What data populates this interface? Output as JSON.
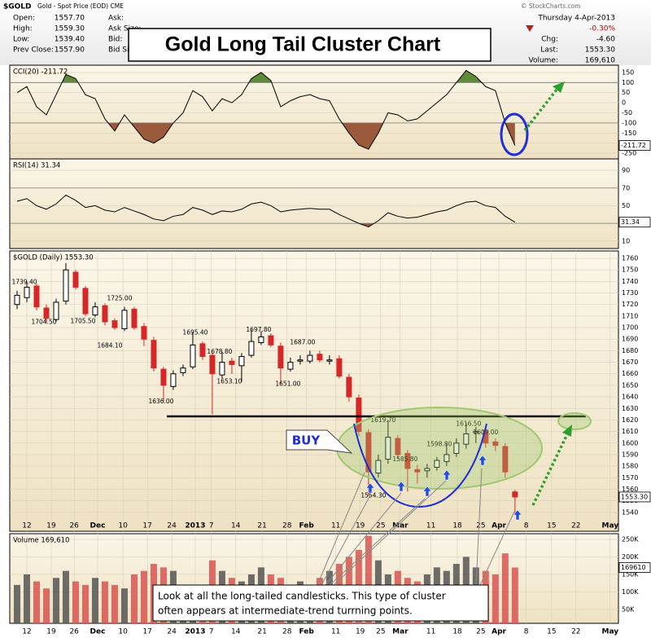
{
  "header": {
    "symbol": "$GOLD",
    "description": "Gold - Spot Price (EOD) CME",
    "fields": [
      [
        "Open:",
        "1557.70"
      ],
      [
        "High:",
        "1559.30"
      ],
      [
        "Low:",
        "1539.40"
      ],
      [
        "Prev Close:",
        "1557.90"
      ]
    ],
    "quote_fields": [
      "Ask:",
      "Ask Size:",
      "Bid:",
      "Bid Size:"
    ],
    "copyright": "© StockCharts.com",
    "date": "Thursday  4-Apr-2013",
    "change_pct": "-0.30%",
    "stats": [
      [
        "Chg:",
        "-4.60"
      ],
      [
        "Last:",
        "1553.30"
      ],
      [
        "Volume:",
        "169,610"
      ]
    ]
  },
  "annotations": {
    "title": "Gold Long Tail Cluster Chart",
    "buy": "BUY",
    "note": [
      "Look at all the long-tailed candlesticks.  This type of cluster",
      "often appears at intermediate-trend turrning points."
    ]
  },
  "chart_data": [
    {
      "type": "line",
      "label": "CCI(20) -211.72",
      "last_value_label": "-211.72",
      "color": "#000000",
      "upper_band": 100,
      "lower_band": -100,
      "upper_color": "#5f8a3a",
      "lower_color": "#9b5a3c",
      "xlim": [
        0,
        124.7
      ],
      "ylim": [
        -278,
        186
      ],
      "yticks": [
        150,
        100,
        50,
        0,
        -50,
        -100,
        -150,
        -200,
        -250
      ],
      "x": [
        1.5,
        3.5,
        5.5,
        7.5,
        9.5,
        11.5,
        13.5,
        15.5,
        17.5,
        19.5,
        21.5,
        23.5,
        25.5,
        27.5,
        29.5,
        31.5,
        33.5,
        35.5,
        37.5,
        39.5,
        41.5,
        43.5,
        45.5,
        47.5,
        49.5,
        51.5,
        53.5,
        55.5,
        57.5,
        59.5,
        61.5,
        63.5,
        65.5,
        67.5,
        69.5,
        71.5,
        73.5,
        75.5,
        77.5,
        79.5,
        81.5,
        83.5,
        85.5,
        87.5,
        89.5,
        91.5,
        93.5,
        95.5,
        97.5,
        99.5,
        101.5,
        103.5
      ],
      "values": [
        50,
        80,
        -20,
        -60,
        40,
        140,
        120,
        40,
        20,
        -80,
        -140,
        -60,
        -120,
        -180,
        -200,
        -170,
        -100,
        -50,
        60,
        30,
        -40,
        20,
        0,
        40,
        120,
        150,
        110,
        -20,
        10,
        30,
        40,
        20,
        10,
        -80,
        -150,
        -210,
        -230,
        -150,
        -50,
        -60,
        -90,
        -80,
        -40,
        0,
        40,
        100,
        160,
        130,
        80,
        60,
        -100,
        -211.72
      ]
    },
    {
      "type": "line",
      "label": "RSI(14) 31.34",
      "last_value_label": "31.34",
      "color": "#000000",
      "upper_band": 70,
      "lower_band": 30,
      "upper_color": "#5f8a3a",
      "lower_color": "#9b5a3c",
      "xlim": [
        0,
        124.7
      ],
      "ylim": [
        1.5,
        103
      ],
      "yticks": [
        90,
        70,
        50,
        30,
        10
      ],
      "x": [
        1.5,
        3.5,
        5.5,
        7.5,
        9.5,
        11.5,
        13.5,
        15.5,
        17.5,
        19.5,
        21.5,
        23.5,
        25.5,
        27.5,
        29.5,
        31.5,
        33.5,
        35.5,
        37.5,
        39.5,
        41.5,
        43.5,
        45.5,
        47.5,
        49.5,
        51.5,
        53.5,
        55.5,
        57.5,
        59.5,
        61.5,
        63.5,
        65.5,
        67.5,
        69.5,
        71.5,
        73.5,
        75.5,
        77.5,
        79.5,
        81.5,
        83.5,
        85.5,
        87.5,
        89.5,
        91.5,
        93.5,
        95.5,
        97.5,
        99.5,
        101.5,
        103.5
      ],
      "values": [
        55,
        58,
        50,
        46,
        52,
        62,
        56,
        48,
        50,
        45,
        43,
        48,
        44,
        40,
        35,
        33,
        38,
        40,
        48,
        45,
        40,
        44,
        43,
        46,
        52,
        54,
        50,
        43,
        45,
        46,
        47,
        46,
        46,
        40,
        35,
        30,
        26,
        33,
        42,
        38,
        36,
        37,
        40,
        43,
        45,
        50,
        54,
        55,
        50,
        48,
        38,
        31.34
      ]
    },
    {
      "type": "candlestick",
      "label": "$GOLD (Daily) 1553.30",
      "last_value_label": "1553.30",
      "up_color": "#000000",
      "down_color": "#d62728",
      "xlim": [
        0,
        124.7
      ],
      "ylim": [
        1523.6,
        1766.4
      ],
      "yticks": [
        1760,
        1750,
        1740,
        1730,
        1720,
        1710,
        1700,
        1690,
        1680,
        1670,
        1660,
        1650,
        1640,
        1630,
        1620,
        1610,
        1600,
        1590,
        1580,
        1570,
        1560,
        1550,
        1540
      ],
      "xticks": [
        {
          "value": 3.5,
          "label": "12"
        },
        {
          "value": 8.5,
          "label": "19"
        },
        {
          "value": 13.2,
          "label": "26"
        },
        {
          "value": 18,
          "label": "Dec"
        },
        {
          "value": 23.2,
          "label": "10"
        },
        {
          "value": 28.2,
          "label": "17"
        },
        {
          "value": 33.2,
          "label": "24"
        },
        {
          "value": 38,
          "label": "2013"
        },
        {
          "value": 41.3,
          "label": "7"
        },
        {
          "value": 46.3,
          "label": "14"
        },
        {
          "value": 51.7,
          "label": "21"
        },
        {
          "value": 56.8,
          "label": "28"
        },
        {
          "value": 60.8,
          "label": "Feb"
        },
        {
          "value": 66.8,
          "label": "11"
        },
        {
          "value": 71.8,
          "label": "19"
        },
        {
          "value": 76,
          "label": "25"
        },
        {
          "value": 80,
          "label": "Mar"
        },
        {
          "value": 86.3,
          "label": "11"
        },
        {
          "value": 91.7,
          "label": "18"
        },
        {
          "value": 96.5,
          "label": "25"
        },
        {
          "value": 100.2,
          "label": "Apr"
        },
        {
          "value": 105.8,
          "label": "8"
        },
        {
          "value": 111,
          "label": "15"
        },
        {
          "value": 116,
          "label": "22"
        },
        {
          "value": 123,
          "label": "May"
        }
      ],
      "x": [
        1.5,
        3.5,
        5.5,
        7.5,
        9.5,
        11.5,
        13.5,
        15.5,
        17.5,
        19.5,
        21.5,
        23.5,
        25.5,
        27.5,
        29.5,
        31.5,
        33.5,
        35.5,
        37.5,
        39.5,
        41.5,
        43.5,
        45.5,
        47.5,
        49.5,
        51.5,
        53.5,
        55.5,
        57.5,
        59.5,
        61.5,
        63.5,
        65.5,
        67.5,
        69.5,
        71.5,
        73.5,
        75.5,
        77.5,
        79.5,
        81.5,
        83.5,
        85.5,
        87.5,
        89.5,
        91.5,
        93.5,
        95.5,
        97.5,
        99.5,
        101.5,
        103.5
      ],
      "open": [
        1720,
        1726,
        1736,
        1717,
        1707,
        1723,
        1748,
        1734,
        1711,
        1719,
        1706,
        1699,
        1716,
        1701,
        1689,
        1664,
        1649,
        1661,
        1666,
        1686,
        1676,
        1659,
        1671,
        1667,
        1676,
        1687,
        1693,
        1684,
        1664,
        1671,
        1671,
        1677,
        1671,
        1673,
        1657,
        1639,
        1609,
        1574,
        1586,
        1604,
        1591,
        1577,
        1576,
        1579,
        1584,
        1591,
        1599,
        1609,
        1611,
        1601,
        1597,
        1557.7
      ],
      "high": [
        1732,
        1740,
        1738,
        1720,
        1725,
        1756,
        1750,
        1736,
        1722,
        1721,
        1708,
        1718,
        1718,
        1704,
        1692,
        1666,
        1663,
        1668,
        1696,
        1688,
        1678,
        1679,
        1674,
        1678,
        1698,
        1697,
        1695,
        1687,
        1674,
        1676,
        1680,
        1680,
        1676,
        1676,
        1660,
        1642,
        1612,
        1590,
        1620,
        1607,
        1594,
        1581,
        1582,
        1588,
        1599,
        1604,
        1617,
        1614,
        1614,
        1604,
        1600,
        1559.3
      ],
      "low": [
        1716,
        1722,
        1715,
        1704,
        1705,
        1720,
        1733,
        1710,
        1709,
        1702,
        1698,
        1697,
        1698,
        1684,
        1662,
        1636,
        1646,
        1658,
        1664,
        1672,
        1625,
        1656,
        1660,
        1653,
        1674,
        1685,
        1683,
        1651,
        1662,
        1668,
        1669,
        1670,
        1668,
        1656,
        1636,
        1606,
        1554,
        1570,
        1582,
        1586,
        1558,
        1565,
        1570,
        1576,
        1580,
        1588,
        1595,
        1600,
        1596,
        1593,
        1570,
        1539.4
      ],
      "close": [
        1728,
        1735,
        1718,
        1708,
        1722,
        1750,
        1735,
        1712,
        1718,
        1705,
        1700,
        1715,
        1700,
        1690,
        1665,
        1650,
        1660,
        1665,
        1685,
        1675,
        1660,
        1670,
        1668,
        1675,
        1688,
        1692,
        1685,
        1665,
        1670,
        1672,
        1676,
        1672,
        1672,
        1658,
        1640,
        1610,
        1575,
        1585,
        1605,
        1590,
        1578,
        1575,
        1578,
        1585,
        1590,
        1600,
        1608,
        1610,
        1600,
        1598,
        1575,
        1553.3
      ],
      "point_labels": [
        {
          "x": 3,
          "value": 1739.4,
          "label": "1739.40"
        },
        {
          "x": 7,
          "value": 1704.5,
          "label": "1704.50"
        },
        {
          "x": 15,
          "value": 1705.5,
          "label": "1705.50"
        },
        {
          "x": 22.5,
          "value": 1725,
          "label": "1725.00"
        },
        {
          "x": 20.5,
          "value": 1684.1,
          "label": "1684.10"
        },
        {
          "x": 31,
          "value": 1636,
          "label": "1636.00"
        },
        {
          "x": 38,
          "value": 1695.4,
          "label": "1695.40"
        },
        {
          "x": 43,
          "value": 1678.8,
          "label": "1678.80"
        },
        {
          "x": 45,
          "value": 1653.1,
          "label": "1653.10"
        },
        {
          "x": 51,
          "value": 1697.8,
          "label": "1697.80"
        },
        {
          "x": 57,
          "value": 1651,
          "label": "1651.00"
        },
        {
          "x": 60,
          "value": 1687,
          "label": "1687.00"
        },
        {
          "x": 76.5,
          "value": 1619.7,
          "label": "1619.70"
        },
        {
          "x": 81,
          "value": 1585.8,
          "label": "1585.80"
        },
        {
          "x": 88,
          "value": 1598.8,
          "label": "1598.80"
        },
        {
          "x": 94,
          "value": 1616.5,
          "label": "1616.50"
        },
        {
          "x": 97.5,
          "value": 1609,
          "label": "1609.00"
        },
        {
          "x": 74.5,
          "value": 1554.3,
          "label": "1554.30"
        }
      ]
    },
    {
      "type": "bar",
      "label": "Volume 169,610",
      "last_value_label": "169610",
      "up_color": "#555555",
      "down_color": "#d9534f",
      "xlim": [
        0,
        124.7
      ],
      "ylim": [
        10500,
        266000
      ],
      "yticks": [
        {
          "value": 250000,
          "label": "250K"
        },
        {
          "value": 200000,
          "label": "200K"
        },
        {
          "value": 150000,
          "label": "150K"
        },
        {
          "value": 100000,
          "label": "100K"
        },
        {
          "value": 50000,
          "label": "50K"
        }
      ],
      "xticks": [
        {
          "value": 3.5,
          "label": "12"
        },
        {
          "value": 8.5,
          "label": "19"
        },
        {
          "value": 13.2,
          "label": "26"
        },
        {
          "value": 18,
          "label": "Dec"
        },
        {
          "value": 23.2,
          "label": "10"
        },
        {
          "value": 28.2,
          "label": "17"
        },
        {
          "value": 33.2,
          "label": "24"
        },
        {
          "value": 38,
          "label": "2013"
        },
        {
          "value": 41.3,
          "label": "7"
        },
        {
          "value": 46.3,
          "label": "14"
        },
        {
          "value": 51.7,
          "label": "21"
        },
        {
          "value": 56.8,
          "label": "28"
        },
        {
          "value": 60.8,
          "label": "Feb"
        },
        {
          "value": 66.8,
          "label": "11"
        },
        {
          "value": 71.8,
          "label": "19"
        },
        {
          "value": 76,
          "label": "25"
        },
        {
          "value": 80,
          "label": "Mar"
        },
        {
          "value": 86.3,
          "label": "11"
        },
        {
          "value": 91.7,
          "label": "18"
        },
        {
          "value": 96.5,
          "label": "25"
        },
        {
          "value": 100.2,
          "label": "Apr"
        },
        {
          "value": 105.8,
          "label": "8"
        },
        {
          "value": 111,
          "label": "15"
        },
        {
          "value": 116,
          "label": "22"
        },
        {
          "value": 123,
          "label": "May"
        }
      ],
      "x": [
        1.5,
        3.5,
        5.5,
        7.5,
        9.5,
        11.5,
        13.5,
        15.5,
        17.5,
        19.5,
        21.5,
        23.5,
        25.5,
        27.5,
        29.5,
        31.5,
        33.5,
        35.5,
        37.5,
        39.5,
        41.5,
        43.5,
        45.5,
        47.5,
        49.5,
        51.5,
        53.5,
        55.5,
        57.5,
        59.5,
        61.5,
        63.5,
        65.5,
        67.5,
        69.5,
        71.5,
        73.5,
        75.5,
        77.5,
        79.5,
        81.5,
        83.5,
        85.5,
        87.5,
        89.5,
        91.5,
        93.5,
        95.5,
        97.5,
        99.5,
        101.5,
        103.5
      ],
      "values": [
        120000,
        150000,
        130000,
        110000,
        140000,
        160000,
        130000,
        120000,
        140000,
        130000,
        120000,
        110000,
        150000,
        160000,
        180000,
        170000,
        160000,
        80000,
        60000,
        120000,
        190000,
        160000,
        140000,
        130000,
        150000,
        170000,
        150000,
        140000,
        120000,
        130000,
        110000,
        140000,
        160000,
        180000,
        200000,
        220000,
        260000,
        190000,
        150000,
        160000,
        140000,
        130000,
        150000,
        170000,
        160000,
        180000,
        200000,
        170000,
        160000,
        150000,
        210000,
        169610
      ]
    }
  ]
}
